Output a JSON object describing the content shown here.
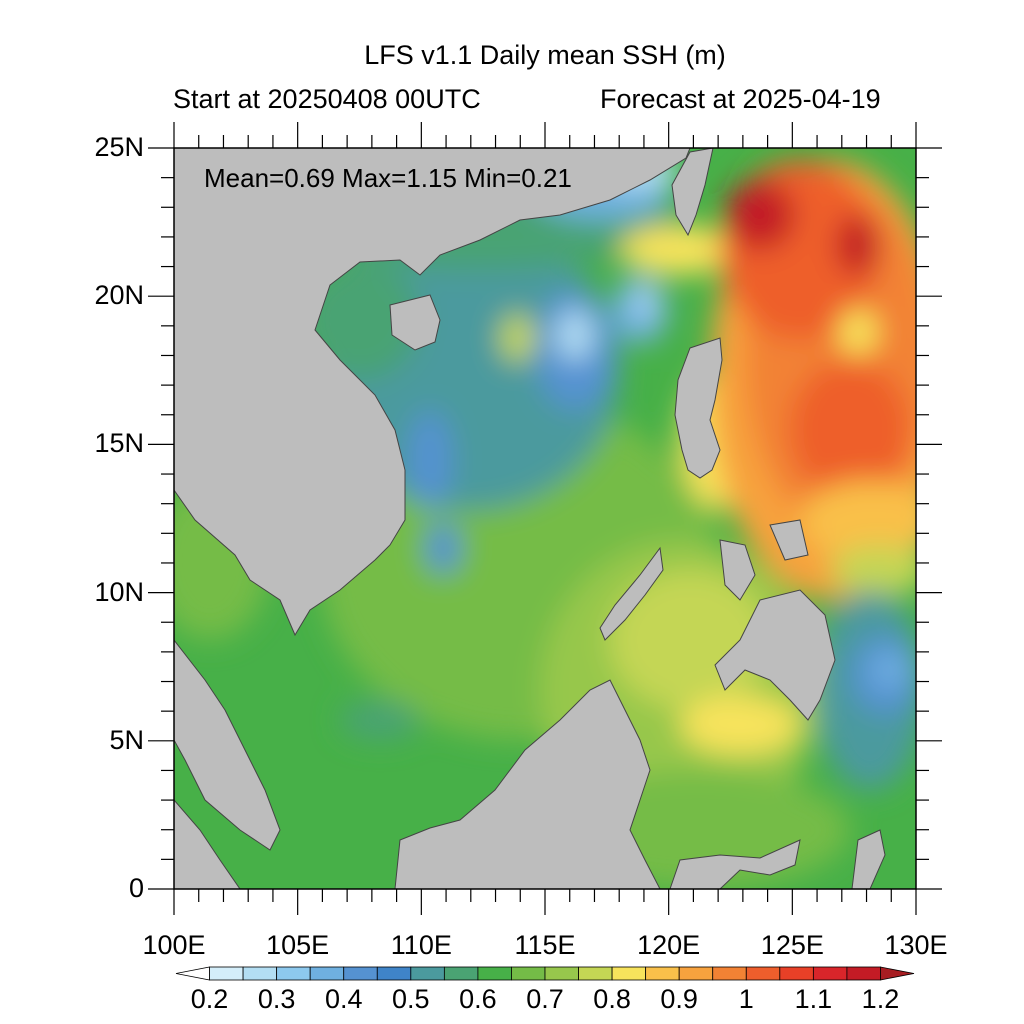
{
  "header": {
    "title": "LFS v1.1 Daily mean SSH (m)",
    "start_label": "Start at 20250408 00UTC",
    "forecast_label": "Forecast at 2025-04-19"
  },
  "stats": {
    "text": "Mean=0.69  Max=1.15  Min=0.21",
    "mean": 0.69,
    "max": 1.15,
    "min": 0.21
  },
  "map": {
    "lon_range": [
      100,
      130
    ],
    "lat_range": [
      0,
      25
    ],
    "lon_ticks": [
      "100E",
      "105E",
      "110E",
      "115E",
      "120E",
      "125E",
      "130E"
    ],
    "lat_ticks": [
      "0",
      "5N",
      "10N",
      "15N",
      "20N",
      "25N"
    ],
    "land_color": "#bdbdbd"
  },
  "colorbar": {
    "levels": [
      "0.2",
      "0.3",
      "0.4",
      "0.5",
      "0.6",
      "0.7",
      "0.8",
      "0.9",
      "1",
      "1.1",
      "1.2"
    ],
    "colors": [
      "#ffffff",
      "#d4eefa",
      "#b3def3",
      "#8dc9ee",
      "#6fb0e0",
      "#5592d1",
      "#3f84c8",
      "#4b9a9e",
      "#4aa373",
      "#47b048",
      "#74bc47",
      "#97c74c",
      "#c4d654",
      "#f7e35c",
      "#f9c04a",
      "#f7a23e",
      "#f28234",
      "#ee5e2c",
      "#e84027",
      "#d9252a",
      "#c31b25",
      "#a71d22"
    ]
  }
}
